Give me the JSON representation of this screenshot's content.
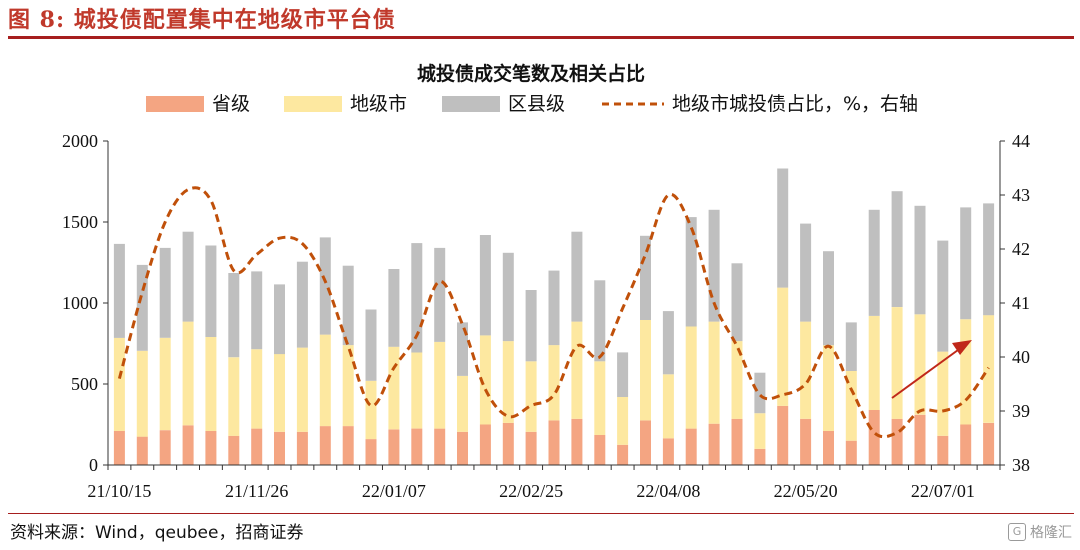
{
  "figure_title": "图 8:  城投债配置集中在地级市平台债",
  "source": "资料来源：Wind，qeubee，招商证券",
  "watermark": "格隆汇",
  "chart_data": {
    "type": "bar",
    "title": "城投债成交笔数及相关占比",
    "stacked": true,
    "x_tick_labels": [
      "21/10/15",
      "21/11/26",
      "22/01/07",
      "22/02/25",
      "22/04/08",
      "22/05/20",
      "22/07/01"
    ],
    "legend": [
      "省级",
      "地级市",
      "区县级",
      "地级市城投债占比，%，右轴"
    ],
    "legend_placement": "top",
    "y_left": {
      "min": 0,
      "max": 2000,
      "ticks": [
        0,
        500,
        1000,
        1500,
        2000
      ]
    },
    "y_right": {
      "min": 38,
      "max": 44,
      "ticks": [
        38,
        39,
        40,
        41,
        42,
        43,
        44
      ]
    },
    "colors": {
      "province": "#f4a582",
      "city": "#fde8a0",
      "county": "#bfbfbf",
      "ratio_line": "#c0500a",
      "arrow": "#c0281a"
    },
    "series": [
      {
        "name": "省级",
        "values": [
          210,
          175,
          215,
          245,
          210,
          180,
          225,
          205,
          205,
          240,
          240,
          160,
          220,
          225,
          225,
          205,
          250,
          260,
          205,
          275,
          285,
          185,
          125,
          275,
          165,
          225,
          255,
          285,
          100,
          365,
          285,
          210,
          150,
          340,
          285,
          310,
          180,
          250,
          260
        ]
      },
      {
        "name": "地级市",
        "values": [
          575,
          530,
          570,
          640,
          580,
          485,
          490,
          480,
          520,
          565,
          500,
          360,
          510,
          470,
          535,
          345,
          550,
          505,
          435,
          465,
          600,
          455,
          295,
          620,
          395,
          630,
          630,
          480,
          220,
          730,
          600,
          530,
          430,
          580,
          690,
          620,
          520,
          650,
          665
        ]
      },
      {
        "name": "区县级",
        "values": [
          580,
          530,
          555,
          555,
          565,
          520,
          480,
          430,
          530,
          600,
          490,
          440,
          480,
          675,
          580,
          330,
          620,
          545,
          440,
          460,
          555,
          500,
          275,
          520,
          390,
          675,
          690,
          480,
          250,
          735,
          605,
          580,
          300,
          655,
          715,
          670,
          685,
          690,
          690
        ]
      },
      {
        "name": "地级市城投债占比，%，右轴",
        "axis": "right",
        "values": [
          39.6,
          41.2,
          42.5,
          43.1,
          42.9,
          41.6,
          41.9,
          42.2,
          42.1,
          41.4,
          40.2,
          39.1,
          39.8,
          40.4,
          41.4,
          40.6,
          39.4,
          38.9,
          39.1,
          39.3,
          40.2,
          40.0,
          40.9,
          41.9,
          43.0,
          42.4,
          41.0,
          40.2,
          39.3,
          39.3,
          39.5,
          40.2,
          39.4,
          38.6,
          38.6,
          39.0,
          39.0,
          39.2,
          39.8
        ]
      }
    ]
  }
}
